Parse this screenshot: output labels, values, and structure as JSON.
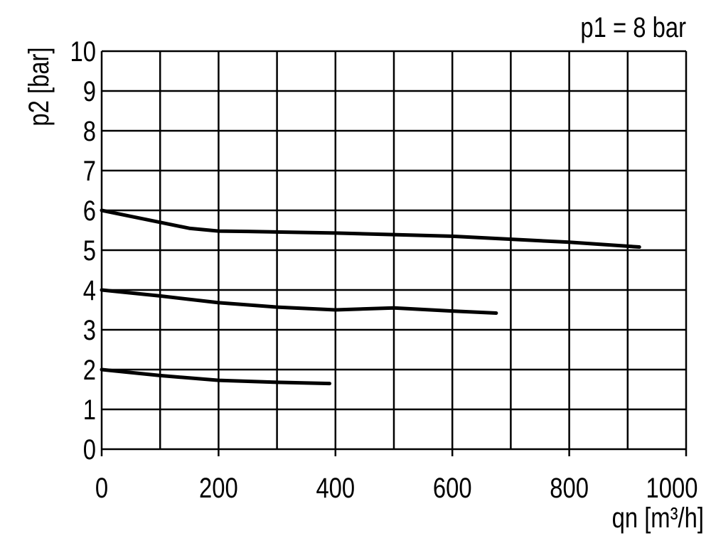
{
  "chart_data": {
    "type": "line",
    "annotation": "p1 = 8 bar",
    "ylabel": "p2 [bar]",
    "xlabel": "qn [m³/h]",
    "xlim": [
      0,
      1000
    ],
    "ylim": [
      0,
      10
    ],
    "xticks": [
      0,
      200,
      400,
      600,
      800,
      1000
    ],
    "xgrid": [
      0,
      100,
      200,
      300,
      400,
      500,
      600,
      700,
      800,
      900,
      1000
    ],
    "yticks": [
      0,
      1,
      2,
      3,
      4,
      5,
      6,
      7,
      8,
      9,
      10
    ],
    "grid": true,
    "series": [
      {
        "color": "#000000",
        "x": [
          0,
          50,
          100,
          150,
          200,
          250,
          400,
          600,
          800,
          920
        ],
        "values": [
          6,
          5.85,
          5.7,
          5.55,
          5.48,
          5.47,
          5.43,
          5.35,
          5.2,
          5.08
        ]
      },
      {
        "color": "#000000",
        "x": [
          0,
          100,
          200,
          300,
          400,
          500,
          600,
          675
        ],
        "values": [
          4,
          3.85,
          3.68,
          3.57,
          3.5,
          3.55,
          3.47,
          3.42
        ]
      },
      {
        "color": "#000000",
        "x": [
          0,
          100,
          200,
          300,
          390
        ],
        "values": [
          2,
          1.85,
          1.73,
          1.68,
          1.65
        ]
      }
    ]
  }
}
